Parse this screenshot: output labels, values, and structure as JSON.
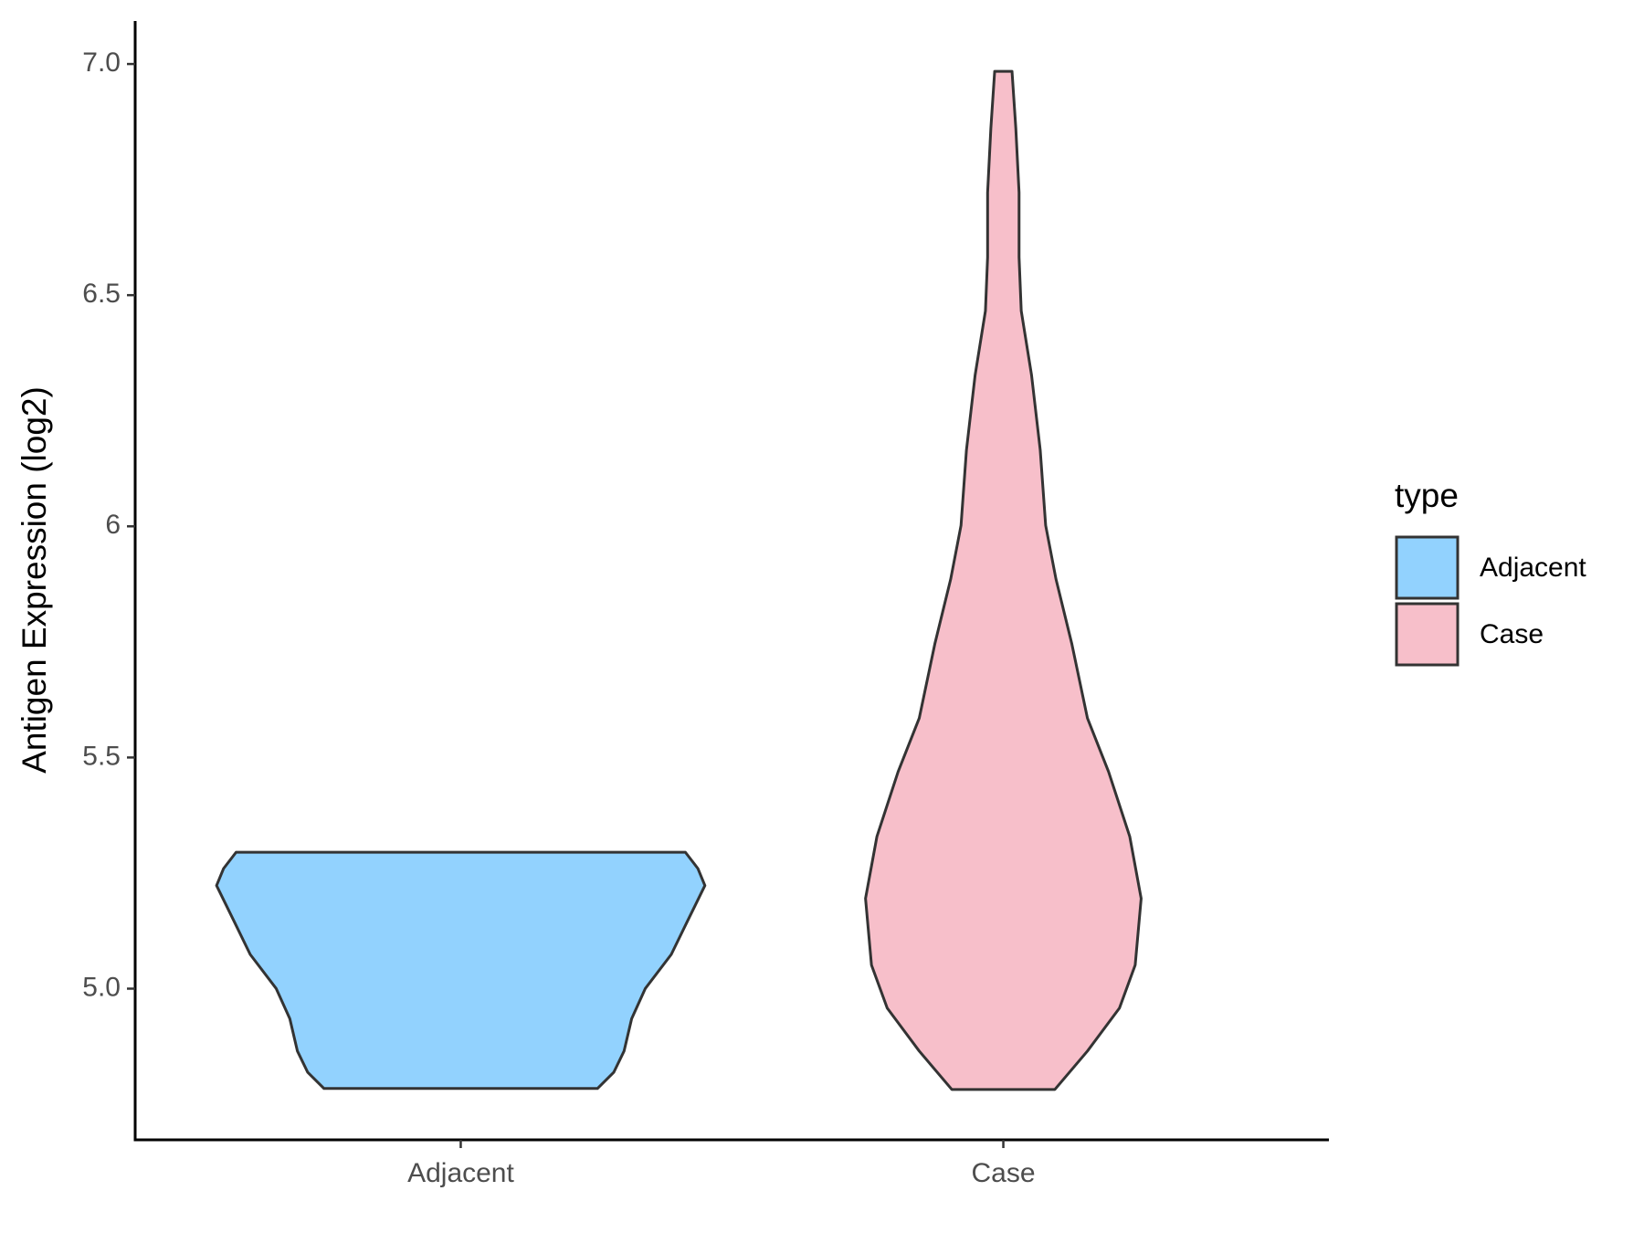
{
  "chart_data": {
    "type": "violin",
    "y_label": "Antigen Expression (log2)",
    "categories": [
      "Adjacent",
      "Case"
    ],
    "legend_title": "type",
    "legend": "right",
    "grid": false,
    "ylim": [
      4.673,
      7.093
    ],
    "yticks": [
      {
        "value": 5,
        "label": "5.0"
      },
      5.5,
      6,
      6.5,
      {
        "value": 7,
        "label": "7.0"
      }
    ],
    "series": [
      {
        "name": "Adjacent",
        "color": "#92d2fe",
        "y": [
          4.784,
          4.819,
          4.865,
          4.935,
          5.0,
          5.074,
          5.144,
          5.223,
          5.26,
          5.295
        ],
        "half_width": [
          0.252,
          0.282,
          0.301,
          0.315,
          0.34,
          0.388,
          0.417,
          0.45,
          0.437,
          0.414
        ]
      },
      {
        "name": "Case",
        "color": "#f7bfca",
        "y": [
          4.782,
          4.865,
          4.958,
          5.051,
          5.195,
          5.329,
          5.469,
          5.585,
          5.747,
          5.886,
          6.002,
          6.165,
          6.327,
          6.466,
          6.582,
          6.722,
          6.861,
          6.984
        ],
        "half_width": [
          0.095,
          0.155,
          0.214,
          0.243,
          0.254,
          0.233,
          0.194,
          0.155,
          0.126,
          0.097,
          0.078,
          0.068,
          0.052,
          0.033,
          0.029,
          0.029,
          0.023,
          0.016
        ]
      }
    ]
  }
}
